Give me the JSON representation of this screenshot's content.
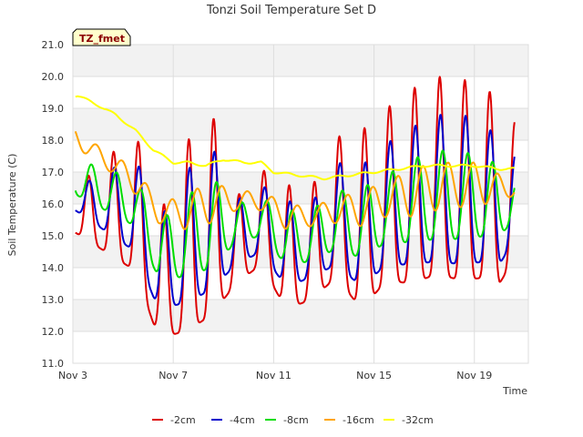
{
  "chart_data": {
    "type": "line",
    "title": "Tonzi Soil Temperature Set D",
    "xlabel": "Time",
    "ylabel": "Soil Temperature (C)",
    "site_label": "TZ_fmet",
    "x_range_days": [
      3,
      21.15
    ],
    "ylim": [
      11.0,
      21.0
    ],
    "y_ticks": [
      "11.0",
      "12.0",
      "13.0",
      "14.0",
      "15.0",
      "16.0",
      "17.0",
      "18.0",
      "19.0",
      "20.0",
      "21.0"
    ],
    "x_ticks": [
      {
        "day": 3,
        "label": "Nov 3"
      },
      {
        "day": 7,
        "label": "Nov 7"
      },
      {
        "day": 11,
        "label": "Nov 11"
      },
      {
        "day": 15,
        "label": "Nov 15"
      },
      {
        "day": 19,
        "label": "Nov 19"
      }
    ],
    "band_fill": "#f2f2f2",
    "grid": true,
    "legend_position": "bottom",
    "series": [
      {
        "name": "-2cm",
        "color": "#dd0000",
        "kind": "diurnal",
        "lag": 0.0,
        "sharp": 2.2,
        "days": [
          3.1,
          5.5,
          6.4,
          7.5,
          8.5,
          9.5,
          10.5,
          11.5,
          12.5,
          13.5,
          14.5,
          15.5,
          16.5,
          17.5,
          18.5,
          19.5,
          20.0,
          20.6
        ],
        "mins": [
          15.1,
          13.9,
          11.8,
          12.0,
          12.5,
          13.5,
          14.1,
          12.7,
          13.0,
          13.7,
          12.7,
          13.6,
          13.5,
          13.8,
          13.6,
          13.7,
          13.5,
          14.3
        ],
        "maxs": [
          16.5,
          18.3,
          15.5,
          17.9,
          19.0,
          16.2,
          17.1,
          16.6,
          16.5,
          18.1,
          18.3,
          19.0,
          19.6,
          20.0,
          19.9,
          19.8,
          18.6,
          18.6
        ]
      },
      {
        "name": "-4cm",
        "color": "#0000cc",
        "kind": "diurnal",
        "lag": 0.03,
        "sharp": 1.8,
        "days": [
          3.1,
          5.5,
          6.4,
          7.5,
          8.5,
          9.5,
          10.5,
          11.5,
          12.5,
          13.5,
          14.5,
          15.5,
          16.5,
          17.5,
          18.5,
          19.5,
          20.0,
          20.6
        ],
        "mins": [
          15.8,
          14.5,
          12.7,
          12.9,
          13.3,
          14.1,
          14.5,
          13.4,
          13.7,
          14.1,
          13.4,
          14.1,
          14.1,
          14.2,
          14.1,
          14.2,
          14.1,
          14.9
        ],
        "maxs": [
          16.5,
          17.5,
          15.4,
          17.0,
          17.9,
          16.1,
          16.6,
          16.1,
          16.0,
          17.3,
          17.2,
          17.9,
          18.4,
          18.8,
          18.8,
          18.6,
          17.6,
          17.6
        ]
      },
      {
        "name": "-8cm",
        "color": "#00dd00",
        "kind": "diurnal",
        "lag": 0.12,
        "sharp": 1.3,
        "days": [
          3.1,
          5.5,
          6.4,
          7.5,
          8.5,
          9.5,
          10.5,
          11.5,
          12.5,
          13.5,
          14.5,
          15.5,
          16.5,
          17.5,
          18.5,
          19.5,
          20.0,
          20.6
        ],
        "mins": [
          16.3,
          15.3,
          13.7,
          13.7,
          14.0,
          14.8,
          15.0,
          14.1,
          14.2,
          14.6,
          14.3,
          14.8,
          14.8,
          14.9,
          14.9,
          15.0,
          15.0,
          15.5
        ],
        "maxs": [
          17.4,
          16.8,
          15.4,
          16.2,
          16.9,
          16.0,
          16.2,
          15.8,
          15.8,
          16.4,
          16.5,
          16.9,
          17.4,
          17.7,
          17.6,
          17.6,
          17.0,
          16.8
        ]
      },
      {
        "name": "-16cm",
        "color": "#ffa500",
        "kind": "diurnal",
        "lag": 0.33,
        "sharp": 1.0,
        "days": [
          3.1,
          4.5,
          5.5,
          6.4,
          7.5,
          8.5,
          9.5,
          10.5,
          11.5,
          12.5,
          13.5,
          14.5,
          15.5,
          16.5,
          17.5,
          18.5,
          19.5,
          20.0,
          20.6
        ],
        "mins": [
          17.8,
          17.0,
          16.3,
          15.4,
          15.2,
          15.4,
          15.8,
          15.8,
          15.2,
          15.3,
          15.4,
          15.3,
          15.6,
          15.6,
          15.8,
          15.9,
          16.0,
          16.0,
          16.3
        ],
        "maxs": [
          18.4,
          17.5,
          17.2,
          16.0,
          16.3,
          16.7,
          16.4,
          16.4,
          16.0,
          15.9,
          16.2,
          16.4,
          16.7,
          17.1,
          17.3,
          17.3,
          17.3,
          16.9,
          16.6
        ]
      },
      {
        "name": "-32cm",
        "color": "#ffff00",
        "kind": "smooth",
        "days": [
          3.2,
          4.0,
          4.7,
          5.5,
          6.2,
          7.0,
          7.6,
          8.3,
          9.0,
          9.8,
          10.5,
          11.0,
          12.0,
          13.0,
          14.0,
          15.0,
          16.0,
          17.0,
          18.0,
          19.0,
          20.0,
          20.6
        ],
        "values": [
          19.4,
          19.1,
          18.8,
          18.3,
          17.7,
          17.3,
          17.3,
          17.2,
          17.4,
          17.3,
          17.3,
          17.0,
          16.9,
          16.8,
          16.9,
          17.0,
          17.1,
          17.2,
          17.2,
          17.2,
          17.1,
          17.1
        ]
      }
    ]
  }
}
